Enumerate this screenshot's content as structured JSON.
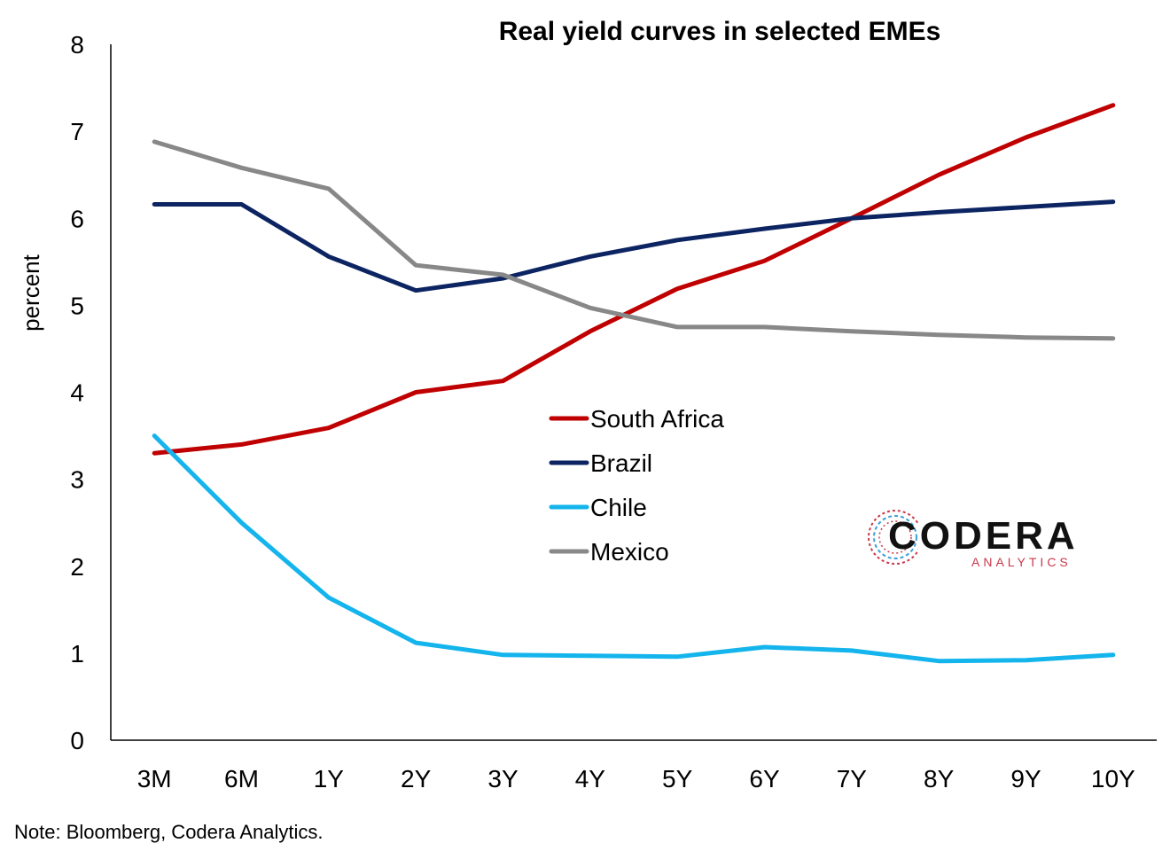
{
  "chart_data": {
    "type": "line",
    "title": "Real yield curves in selected EMEs",
    "ylabel": "percent",
    "xlabel": "",
    "ylim": [
      0,
      8
    ],
    "yticks": [
      0,
      1,
      2,
      3,
      4,
      5,
      6,
      7,
      8
    ],
    "grid": false,
    "legend_position": "center",
    "categories": [
      "3M",
      "6M",
      "1Y",
      "2Y",
      "3Y",
      "4Y",
      "5Y",
      "6Y",
      "7Y",
      "8Y",
      "9Y",
      "10Y"
    ],
    "series": [
      {
        "name": "South Africa",
        "color": "#c00000",
        "values": [
          3.3,
          3.4,
          3.59,
          4.0,
          4.13,
          4.7,
          5.19,
          5.51,
          6.0,
          6.5,
          6.93,
          7.3
        ]
      },
      {
        "name": "Brazil",
        "color": "#0c2461",
        "values": [
          6.16,
          6.16,
          5.56,
          5.17,
          5.31,
          5.56,
          5.75,
          5.88,
          6.0,
          6.07,
          6.13,
          6.19
        ]
      },
      {
        "name": "Chile",
        "color": "#14b4ec",
        "values": [
          3.5,
          2.5,
          1.64,
          1.12,
          0.98,
          0.97,
          0.96,
          1.07,
          1.03,
          0.91,
          0.92,
          0.98
        ]
      },
      {
        "name": "Mexico",
        "color": "#888888",
        "values": [
          6.88,
          6.58,
          6.34,
          5.46,
          5.35,
          4.97,
          4.75,
          4.75,
          4.7,
          4.66,
          4.63,
          4.62
        ]
      }
    ]
  },
  "note": "Note: Bloomberg, Codera Analytics.",
  "logo": {
    "word": "CODERA",
    "sub": "ANALYTICS",
    "accent": "#c9384a",
    "accent2": "#3aa0d8"
  }
}
